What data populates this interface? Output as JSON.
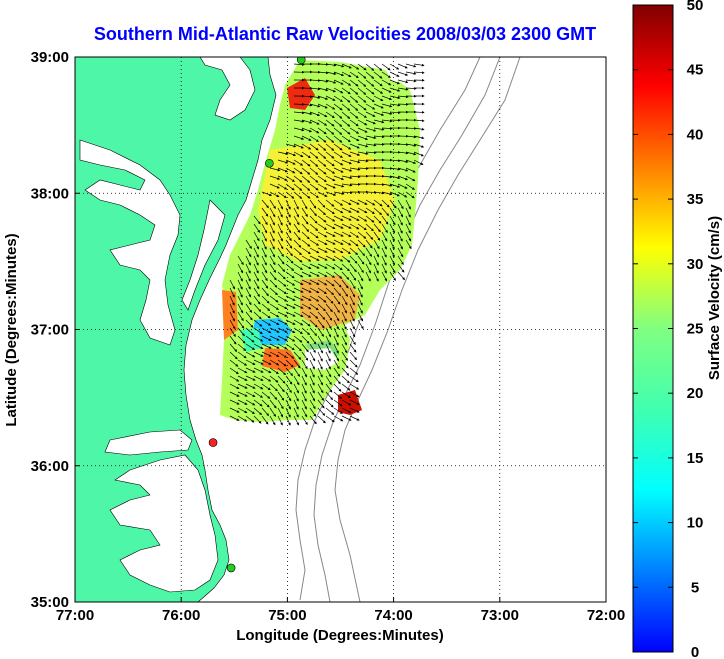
{
  "map": {
    "title": "Southern Mid-Atlantic Raw Velocities 2008/03/03 2300 GMT",
    "xlabel": "Longitude (Degrees:Minutes)",
    "ylabel": "Latitude (Degrees:Minutes)",
    "x_ticks": [
      "77:00",
      "76:00",
      "75:00",
      "74:00",
      "73:00",
      "72:00"
    ],
    "y_ticks": [
      "39:00",
      "38:00",
      "37:00",
      "36:00",
      "35:00"
    ],
    "lon_range": [
      -77,
      -72
    ],
    "lat_range": [
      35,
      39
    ],
    "grid": "dotted",
    "land_color": "#4ef7a8",
    "bathymetry_color": "#888888",
    "stations": [
      {
        "lon": -74.87,
        "lat": 38.98,
        "color": "#22cc22"
      },
      {
        "lon": -75.17,
        "lat": 38.22,
        "color": "#22cc22"
      },
      {
        "lon": -75.7,
        "lat": 36.17,
        "color": "#ff2020"
      },
      {
        "lon": -75.53,
        "lat": 35.25,
        "color": "#22cc22"
      }
    ]
  },
  "colorbar": {
    "label": "Surface Velocity (cm/s)",
    "ticks": [
      "0",
      "5",
      "10",
      "15",
      "20",
      "25",
      "30",
      "35",
      "40",
      "45",
      "50"
    ],
    "range": [
      0,
      50
    ]
  }
}
